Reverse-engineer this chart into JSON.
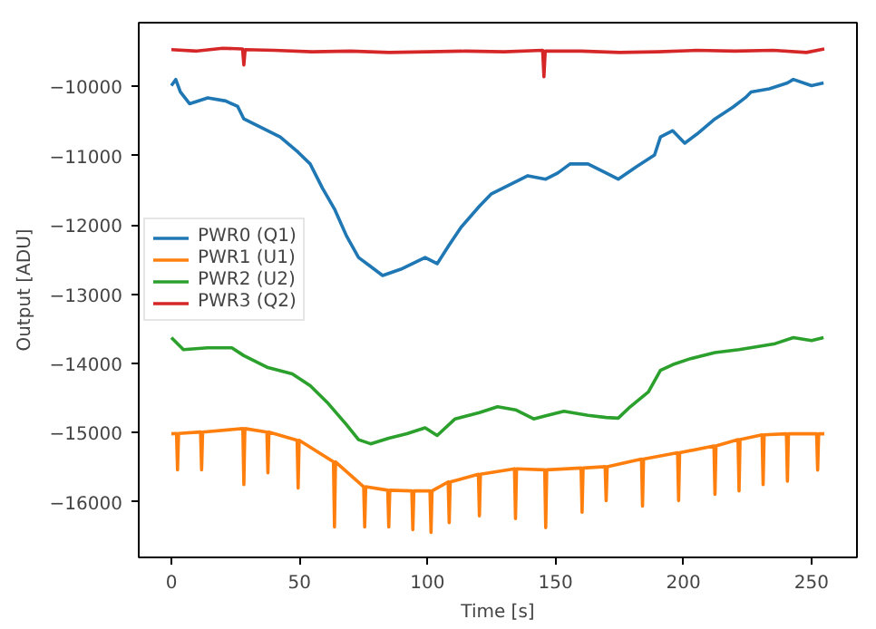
{
  "chart_data": {
    "type": "line",
    "xlabel": "Time [s]",
    "ylabel": "Output [ADU]",
    "xlim": [
      -12.75,
      267.75
    ],
    "ylim": [
      -16800,
      -9080
    ],
    "xticks": [
      0,
      50,
      100,
      150,
      200,
      250
    ],
    "yticks": [
      -16000,
      -15000,
      -14000,
      -13000,
      -12000,
      -11000,
      -10000
    ],
    "grid": false,
    "legend": "center left",
    "line_style": "solid",
    "marker": "none",
    "series": [
      {
        "name": "PWR0 (Q1)",
        "color": "#1f77b4",
        "x": [
          0,
          1.7,
          3.5,
          7.1,
          14.2,
          21.2,
          25.9,
          28.3,
          35.4,
          42.5,
          49.5,
          54.2,
          59,
          63.7,
          68.4,
          73.1,
          77.8,
          82.5,
          89.6,
          99.1,
          103.8,
          108.5,
          113.2,
          120.3,
          125,
          132.1,
          139.2,
          146.2,
          150.9,
          155.7,
          162.7,
          169.8,
          174.5,
          181.6,
          188.7,
          191,
          195.8,
          200.5,
          205.2,
          212.3,
          219.3,
          224.1,
          226.4,
          233.5,
          240.6,
          242.9,
          250,
          254.7
        ],
        "values": [
          -9990,
          -9900,
          -10080,
          -10250,
          -10165,
          -10210,
          -10290,
          -10470,
          -10600,
          -10730,
          -10950,
          -11120,
          -11470,
          -11770,
          -12160,
          -12470,
          -12600,
          -12730,
          -12640,
          -12470,
          -12560,
          -12290,
          -12030,
          -11730,
          -11550,
          -11420,
          -11290,
          -11340,
          -11250,
          -11120,
          -11120,
          -11250,
          -11340,
          -11160,
          -10990,
          -10730,
          -10640,
          -10820,
          -10690,
          -10470,
          -10300,
          -10165,
          -10080,
          -10035,
          -9950,
          -9900,
          -9990,
          -9950
        ]
      },
      {
        "name": "PWR1 (U1)",
        "color": "#ff7f0e",
        "x": [
          0,
          2,
          2.4,
          2.8,
          11.4,
          11.8,
          12.2,
          27.9,
          28.3,
          28.7,
          37.3,
          37.7,
          38.1,
          49.1,
          49.5,
          49.9,
          63.3,
          63.7,
          64.1,
          75.1,
          75.5,
          75.9,
          84.5,
          84.9,
          85.3,
          93.9,
          94.3,
          94.7,
          101,
          101.4,
          101.8,
          108.1,
          108.5,
          108.9,
          119.9,
          120.3,
          120.7,
          134,
          134.4,
          134.8,
          145.8,
          146.2,
          146.6,
          160,
          160.4,
          160.8,
          169.4,
          169.8,
          170.2,
          183.6,
          184,
          184.4,
          197.7,
          198.1,
          198.5,
          211.9,
          212.3,
          212.7,
          221.3,
          221.7,
          222.1,
          230.7,
          231.1,
          231.5,
          240.2,
          240.6,
          241,
          252,
          252.4,
          252.8,
          255
        ],
        "values": [
          -15015,
          -15010,
          -15536,
          -15010,
          -14990,
          -15536,
          -14990,
          -14940,
          -15750,
          -14940,
          -14990,
          -15580,
          -14990,
          -15110,
          -15800,
          -15110,
          -15420,
          -16360,
          -15420,
          -15780,
          -16360,
          -15780,
          -15830,
          -16360,
          -15830,
          -15840,
          -16400,
          -15840,
          -15840,
          -16440,
          -15840,
          -15710,
          -16300,
          -15710,
          -15600,
          -16200,
          -15600,
          -15520,
          -16240,
          -15520,
          -15536,
          -16370,
          -15536,
          -15510,
          -16150,
          -15510,
          -15490,
          -15980,
          -15490,
          -15380,
          -16060,
          -15380,
          -15290,
          -15980,
          -15290,
          -15190,
          -15890,
          -15190,
          -15100,
          -15840,
          -15100,
          -15030,
          -15750,
          -15030,
          -15015,
          -15700,
          -15015,
          -15015,
          -15540,
          -15015,
          -15015
        ]
      },
      {
        "name": "PWR2 (U2)",
        "color": "#2ca02c",
        "x": [
          0,
          4.7,
          14.2,
          23.6,
          28.3,
          37.7,
          47.2,
          54.2,
          61.3,
          68.4,
          73.1,
          77.8,
          84.9,
          92,
          99.1,
          103.8,
          110.8,
          120.3,
          127.4,
          134.4,
          141.5,
          146.2,
          153.3,
          162.7,
          169.8,
          174.5,
          179.2,
          186.3,
          191,
          195.8,
          202.8,
          212.3,
          221.7,
          228.8,
          235.8,
          242.9,
          250,
          254.7
        ],
        "values": [
          -13627,
          -13800,
          -13774,
          -13774,
          -13887,
          -14060,
          -14150,
          -14320,
          -14580,
          -14885,
          -15100,
          -15160,
          -15080,
          -15015,
          -14930,
          -15040,
          -14800,
          -14710,
          -14625,
          -14670,
          -14800,
          -14755,
          -14690,
          -14750,
          -14780,
          -14790,
          -14625,
          -14410,
          -14100,
          -14017,
          -13930,
          -13844,
          -13800,
          -13757,
          -13714,
          -13627,
          -13670,
          -13627
        ]
      },
      {
        "name": "PWR3 (Q2)",
        "color": "#d62728",
        "x": [
          0,
          10,
          20,
          27.8,
          28.3,
          28.8,
          40,
          55,
          70,
          85,
          100,
          115,
          130,
          145,
          145.5,
          146,
          160,
          175,
          190,
          205,
          220,
          235,
          248,
          255
        ],
        "values": [
          -9470,
          -9490,
          -9450,
          -9460,
          -9690,
          -9470,
          -9480,
          -9500,
          -9490,
          -9510,
          -9500,
          -9490,
          -9500,
          -9480,
          -9860,
          -9490,
          -9490,
          -9510,
          -9500,
          -9480,
          -9490,
          -9480,
          -9510,
          -9460
        ]
      }
    ]
  }
}
